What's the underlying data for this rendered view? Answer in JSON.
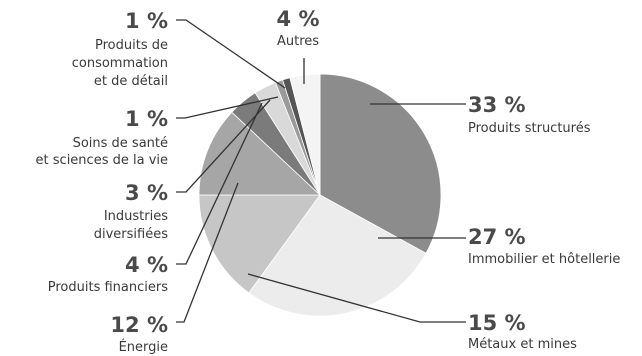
{
  "chart_data": {
    "type": "pie",
    "title": "",
    "legend": "none",
    "grid": false,
    "slices": [
      {
        "label": "Produits structurés",
        "value": 33,
        "display": "33 %",
        "color": "#8c8c8c"
      },
      {
        "label": "Immobilier et hôtellerie",
        "value": 27,
        "display": "27 %",
        "color": "#ececec"
      },
      {
        "label": "Métaux et mines",
        "value": 15,
        "display": "15 %",
        "color": "#c6c6c6"
      },
      {
        "label": "Énergie",
        "value": 12,
        "display": "12 %",
        "color": "#a6a6a6"
      },
      {
        "label": "Produits financiers",
        "value": 4,
        "display": "4 %",
        "color": "#7b7b7b"
      },
      {
        "label": "Industries diversifiées",
        "value": 3,
        "display": "3 %",
        "color": "#d9d9d9"
      },
      {
        "label": "Soins de santé et sciences de la vie",
        "value": 1,
        "display": "1 %",
        "color": "#9a9a9a"
      },
      {
        "label": "Produits de consommation et de détail",
        "value": 1,
        "display": "1 %",
        "color": "#555555"
      },
      {
        "label": "Autres",
        "value": 4,
        "display": "4 %",
        "color": "#f4f4f4"
      }
    ]
  }
}
